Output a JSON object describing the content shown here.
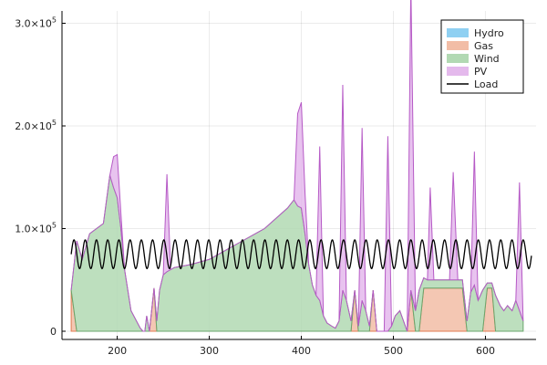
{
  "chart_data": {
    "type": "area",
    "stacked": true,
    "title": "",
    "xlabel": "",
    "ylabel": "",
    "xlim": [
      140,
      655
    ],
    "ylim": [
      -8000,
      312000
    ],
    "grid": true,
    "legend_position": "top-right",
    "x_ticks": [
      200,
      300,
      400,
      500,
      600
    ],
    "y_ticks": [
      0,
      100000,
      200000,
      300000
    ],
    "y_tick_labels": [
      {
        "base": "0",
        "exp": ""
      },
      {
        "base": "1.0×10",
        "exp": "5"
      },
      {
        "base": "2.0×10",
        "exp": "5"
      },
      {
        "base": "3.0×10",
        "exp": "5"
      }
    ],
    "x": [
      150,
      156,
      162,
      170,
      185,
      192,
      196,
      200,
      204,
      208,
      215,
      225,
      228,
      230,
      232,
      235,
      240,
      243,
      246,
      250,
      254,
      258,
      262,
      268,
      280,
      300,
      330,
      360,
      385,
      392,
      396,
      400,
      404,
      408,
      412,
      416,
      420,
      424,
      428,
      433,
      437,
      441,
      445,
      449,
      454,
      458,
      462,
      466,
      470,
      474,
      478,
      482,
      486,
      490,
      494,
      498,
      502,
      507,
      511,
      515,
      519,
      524,
      528,
      533,
      537,
      540,
      544,
      548,
      553,
      557,
      561,
      565,
      570,
      575,
      580,
      584,
      588,
      592,
      597,
      602,
      607,
      611,
      616,
      620,
      624,
      629,
      633,
      637,
      641
    ],
    "series": [
      {
        "name": "Hydro",
        "color": "#8fd0f2",
        "values": [
          0,
          0,
          0,
          0,
          0,
          0,
          0,
          0,
          0,
          0,
          0,
          0,
          0,
          0,
          0,
          0,
          0,
          0,
          0,
          0,
          0,
          0,
          0,
          0,
          0,
          0,
          0,
          0,
          0,
          0,
          0,
          0,
          0,
          0,
          0,
          0,
          0,
          0,
          0,
          0,
          0,
          0,
          0,
          0,
          0,
          0,
          0,
          0,
          0,
          0,
          0,
          0,
          0,
          0,
          0,
          0,
          0,
          0,
          0,
          0,
          0,
          0,
          0,
          0,
          0,
          0,
          0,
          0,
          0,
          0,
          0,
          0,
          0,
          0,
          0,
          0,
          0,
          0,
          0,
          0,
          0,
          0,
          0,
          0,
          0,
          0,
          0,
          0,
          0
        ]
      },
      {
        "name": "Gas",
        "color": "#f2bda6",
        "values": [
          40000,
          0,
          0,
          0,
          0,
          0,
          0,
          0,
          0,
          0,
          0,
          0,
          0,
          0,
          0,
          0,
          42000,
          0,
          0,
          0,
          0,
          0,
          0,
          0,
          0,
          0,
          0,
          0,
          0,
          0,
          0,
          0,
          0,
          0,
          0,
          0,
          0,
          0,
          0,
          0,
          0,
          0,
          0,
          0,
          0,
          40000,
          0,
          0,
          0,
          0,
          40000,
          0,
          0,
          0,
          0,
          0,
          0,
          0,
          0,
          0,
          40000,
          0,
          0,
          42000,
          42000,
          42000,
          42000,
          42000,
          42000,
          42000,
          42000,
          42000,
          42000,
          42000,
          0,
          0,
          0,
          0,
          0,
          42000,
          42000,
          0,
          0,
          0,
          0,
          0,
          0,
          0,
          0
        ]
      },
      {
        "name": "Wind",
        "color": "#b2d9b3",
        "values": [
          0,
          88000,
          70000,
          95000,
          105000,
          152000,
          140000,
          130000,
          100000,
          60000,
          20000,
          3000,
          0,
          0,
          15000,
          0,
          0,
          10000,
          40000,
          55000,
          58000,
          60000,
          62000,
          63000,
          65000,
          70000,
          85000,
          100000,
          120000,
          128000,
          122000,
          120000,
          95000,
          65000,
          45000,
          35000,
          30000,
          15000,
          8000,
          5000,
          3000,
          10000,
          40000,
          30000,
          10000,
          0,
          5000,
          30000,
          20000,
          5000,
          0,
          0,
          0,
          0,
          0,
          5000,
          15000,
          20000,
          10000,
          0,
          0,
          20000,
          40000,
          10000,
          8000,
          8000,
          8000,
          8000,
          8000,
          8000,
          8000,
          8000,
          8000,
          8000,
          10000,
          38000,
          45000,
          30000,
          40000,
          5000,
          5000,
          35000,
          25000,
          20000,
          25000,
          20000,
          30000,
          20000,
          10000
        ]
      },
      {
        "name": "PV",
        "color": "#e4b9ec",
        "values": [
          0,
          0,
          0,
          0,
          0,
          0,
          30000,
          42000,
          15000,
          0,
          0,
          0,
          0,
          0,
          0,
          0,
          0,
          0,
          0,
          0,
          95000,
          0,
          0,
          0,
          0,
          0,
          0,
          0,
          0,
          0,
          90000,
          103000,
          40000,
          0,
          0,
          0,
          150000,
          0,
          0,
          0,
          0,
          0,
          200000,
          0,
          0,
          0,
          0,
          168000,
          0,
          0,
          0,
          0,
          0,
          0,
          190000,
          0,
          0,
          0,
          0,
          0,
          300000,
          0,
          0,
          0,
          0,
          90000,
          0,
          0,
          0,
          0,
          0,
          105000,
          0,
          0,
          0,
          0,
          130000,
          0,
          0,
          0,
          0,
          0,
          0,
          0,
          0,
          0,
          0,
          125000,
          0
        ]
      }
    ],
    "load": {
      "name": "Load",
      "color": "#000000",
      "mean": 75000,
      "amplitude": 14000,
      "period": 12.2,
      "x_start": 150,
      "x_end": 650
    }
  }
}
